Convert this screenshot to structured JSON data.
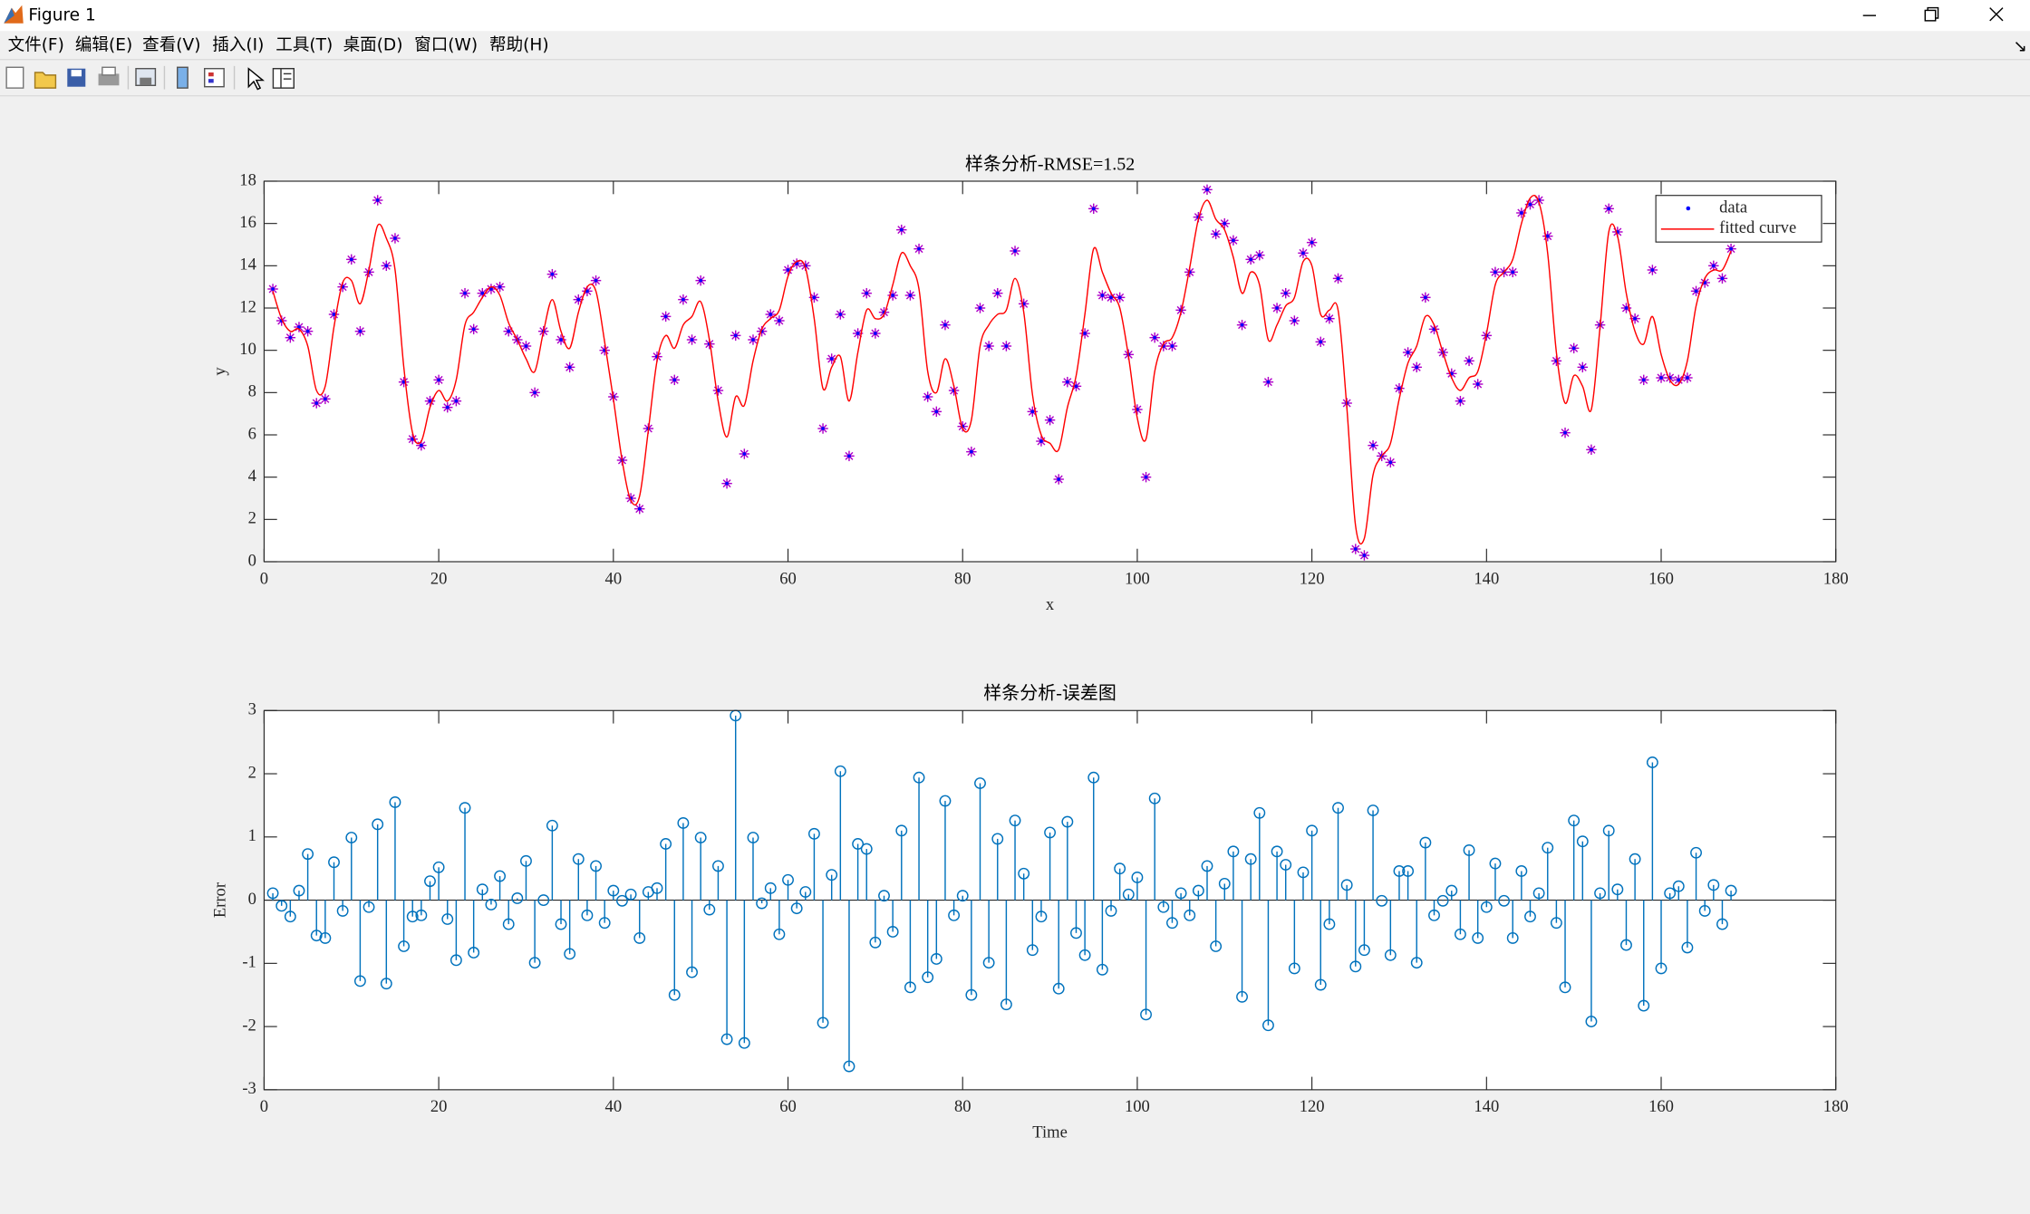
{
  "window": {
    "title": "Figure 1",
    "menu": [
      "文件(F)",
      "编辑(E)",
      "查看(V)",
      "插入(I)",
      "工具(T)",
      "桌面(D)",
      "窗口(W)",
      "帮助(H)"
    ]
  },
  "chart_data": [
    {
      "type": "line",
      "title": "样条分析-RMSE=1.52",
      "xlabel": "x",
      "ylabel": "y",
      "x": [
        1,
        2,
        3,
        4,
        5,
        6,
        7,
        8,
        9,
        10,
        11,
        12,
        13,
        14,
        15,
        16,
        17,
        18,
        19,
        20,
        21,
        22,
        23,
        24,
        25,
        26,
        27,
        28,
        29,
        30,
        31,
        32,
        33,
        34,
        35,
        36,
        37,
        38,
        39,
        40,
        41,
        42,
        43,
        44,
        45,
        46,
        47,
        48,
        49,
        50,
        51,
        52,
        53,
        54,
        55,
        56,
        57,
        58,
        59,
        60,
        61,
        62,
        63,
        64,
        65,
        66,
        67,
        68,
        69,
        70,
        71,
        72,
        73,
        74,
        75,
        76,
        77,
        78,
        79,
        80,
        81,
        82,
        83,
        84,
        85,
        86,
        87,
        88,
        89,
        90,
        91,
        92,
        93,
        94,
        95,
        96,
        97,
        98,
        99,
        100,
        101,
        102,
        103,
        104,
        105,
        106,
        107,
        108,
        109,
        110,
        111,
        112,
        113,
        114,
        115,
        116,
        117,
        118,
        119,
        120,
        121,
        122,
        123,
        124,
        125,
        126,
        127,
        128,
        129,
        130,
        131,
        132,
        133,
        134,
        135,
        136,
        137,
        138,
        139,
        140,
        141,
        142,
        143,
        144,
        145,
        146,
        147,
        148,
        149,
        150,
        151,
        152,
        153,
        154,
        155,
        156,
        157,
        158,
        159,
        160,
        161,
        162,
        163,
        164,
        165,
        166,
        167,
        168
      ],
      "series": [
        {
          "name": "data",
          "style": "markers",
          "color": "#0000ff",
          "marker_color": "#b000c8",
          "values": [
            12.9,
            11.4,
            10.6,
            11.1,
            10.9,
            7.5,
            7.7,
            11.7,
            13.0,
            14.3,
            10.9,
            13.7,
            17.1,
            14.0,
            15.3,
            8.5,
            5.8,
            5.5,
            7.6,
            8.6,
            7.3,
            7.6,
            12.7,
            11.0,
            12.7,
            12.9,
            13.0,
            10.9,
            10.5,
            10.2,
            8.0,
            10.9,
            13.6,
            10.5,
            9.2,
            12.4,
            12.8,
            13.3,
            10.0,
            7.8,
            4.8,
            3.0,
            2.5,
            6.3,
            9.7,
            11.6,
            8.6,
            12.4,
            10.5,
            13.3,
            10.3,
            8.1,
            3.7,
            10.7,
            5.1,
            10.5,
            10.9,
            11.7,
            11.4,
            13.8,
            14.1,
            14.0,
            12.5,
            6.3,
            9.6,
            11.7,
            5.0,
            10.8,
            12.7,
            10.8,
            11.8,
            12.6,
            15.7,
            12.6,
            14.8,
            7.8,
            7.1,
            11.2,
            8.1,
            6.4,
            5.2,
            12.0,
            10.2,
            12.7,
            10.2,
            14.7,
            12.2,
            7.1,
            5.7,
            6.7,
            3.9,
            8.5,
            8.3,
            10.8,
            16.7,
            12.6,
            12.5,
            12.5,
            9.8,
            7.2,
            4.0,
            10.6,
            10.2,
            10.2,
            11.9,
            13.7,
            16.3,
            17.6,
            15.5,
            16.0,
            15.2,
            11.2,
            14.3,
            14.5,
            8.5,
            12.0,
            12.7,
            11.4,
            14.6,
            15.1,
            10.4,
            11.5,
            13.4,
            7.5,
            0.6,
            0.3,
            5.5,
            5.0,
            4.7,
            8.2,
            9.9,
            9.2,
            12.5,
            11.0,
            9.9,
            8.9,
            7.6,
            9.5,
            8.4,
            10.7,
            13.7,
            13.7,
            13.7,
            16.5,
            16.9,
            17.1,
            15.4,
            9.5,
            6.1,
            10.1,
            9.2,
            5.3,
            11.2,
            16.7,
            15.6,
            12.0,
            11.5,
            8.6,
            13.8,
            8.7,
            8.7,
            8.6,
            8.7,
            12.8,
            13.2,
            14.0,
            13.4,
            14.8
          ]
        },
        {
          "name": "fitted curve",
          "style": "line",
          "color": "#ff0000",
          "values": [
            12.8,
            11.5,
            10.9,
            11.0,
            10.2,
            8.1,
            8.3,
            11.1,
            13.2,
            13.3,
            12.2,
            13.8,
            15.9,
            15.3,
            13.8,
            9.2,
            6.1,
            5.7,
            7.3,
            8.1,
            7.6,
            8.6,
            11.2,
            11.8,
            12.5,
            13.0,
            12.6,
            11.3,
            10.5,
            9.6,
            9.0,
            10.9,
            12.4,
            10.9,
            10.1,
            11.8,
            13.0,
            12.8,
            10.4,
            7.7,
            4.8,
            2.9,
            3.1,
            6.2,
            9.5,
            10.7,
            10.1,
            11.2,
            11.6,
            12.3,
            10.5,
            7.6,
            5.9,
            7.8,
            7.4,
            9.5,
            11.0,
            11.5,
            11.9,
            13.5,
            14.2,
            13.9,
            11.5,
            8.2,
            9.2,
            9.7,
            7.6,
            9.9,
            11.9,
            11.5,
            11.7,
            13.1,
            14.6,
            14.0,
            12.9,
            9.0,
            8.0,
            9.6,
            8.3,
            6.3,
            6.7,
            10.2,
            11.2,
            11.7,
            11.9,
            13.4,
            11.8,
            7.9,
            6.0,
            5.6,
            5.3,
            7.3,
            8.8,
            11.7,
            14.8,
            13.7,
            12.7,
            12.0,
            9.7,
            6.8,
            5.8,
            9.0,
            10.3,
            10.6,
            11.8,
            13.9,
            16.2,
            17.1,
            16.2,
            15.7,
            14.4,
            12.7,
            13.7,
            13.1,
            10.5,
            11.2,
            12.1,
            12.5,
            14.2,
            14.0,
            11.7,
            11.9,
            11.9,
            7.3,
            1.7,
            1.1,
            4.1,
            5.0,
            5.6,
            7.7,
            9.4,
            10.2,
            11.6,
            11.2,
            9.9,
            8.7,
            8.1,
            8.7,
            9.0,
            10.8,
            13.1,
            13.7,
            14.3,
            16.0,
            17.2,
            17.0,
            14.6,
            9.9,
            7.5,
            8.8,
            8.3,
            7.2,
            11.1,
            15.6,
            15.4,
            12.7,
            10.9,
            10.3,
            11.6,
            9.8,
            8.6,
            8.4,
            9.5,
            12.1,
            13.4,
            13.8,
            13.8,
            14.7
          ]
        }
      ],
      "xlim": [
        0,
        180
      ],
      "xticks": [
        0,
        20,
        40,
        60,
        80,
        100,
        120,
        140,
        160,
        180
      ],
      "ylim": [
        0,
        18
      ],
      "yticks": [
        0,
        2,
        4,
        6,
        8,
        10,
        12,
        14,
        16,
        18
      ],
      "grid": false,
      "legend": "northeast"
    },
    {
      "type": "stem",
      "title": "样条分析-误差图",
      "xlabel": "Time",
      "ylabel": "Error",
      "x": [
        1,
        2,
        3,
        4,
        5,
        6,
        7,
        8,
        9,
        10,
        11,
        12,
        13,
        14,
        15,
        16,
        17,
        18,
        19,
        20,
        21,
        22,
        23,
        24,
        25,
        26,
        27,
        28,
        29,
        30,
        31,
        32,
        33,
        34,
        35,
        36,
        37,
        38,
        39,
        40,
        41,
        42,
        43,
        44,
        45,
        46,
        47,
        48,
        49,
        50,
        51,
        52,
        53,
        54,
        55,
        56,
        57,
        58,
        59,
        60,
        61,
        62,
        63,
        64,
        65,
        66,
        67,
        68,
        69,
        70,
        71,
        72,
        73,
        74,
        75,
        76,
        77,
        78,
        79,
        80,
        81,
        82,
        83,
        84,
        85,
        86,
        87,
        88,
        89,
        90,
        91,
        92,
        93,
        94,
        95,
        96,
        97,
        98,
        99,
        100,
        101,
        102,
        103,
        104,
        105,
        106,
        107,
        108,
        109,
        110,
        111,
        112,
        113,
        114,
        115,
        116,
        117,
        118,
        119,
        120,
        121,
        122,
        123,
        124,
        125,
        126,
        127,
        128,
        129,
        130,
        131,
        132,
        133,
        134,
        135,
        136,
        137,
        138,
        139,
        140,
        141,
        142,
        143,
        144,
        145,
        146,
        147,
        148,
        149,
        150,
        151,
        152,
        153,
        154,
        155,
        156,
        157,
        158,
        159,
        160,
        161,
        162,
        163,
        164,
        165,
        166,
        167,
        168
      ],
      "color": "#0072bd",
      "values": [
        0.11,
        -0.09,
        -0.26,
        0.15,
        0.73,
        -0.56,
        -0.6,
        0.6,
        -0.17,
        0.99,
        -1.28,
        -0.11,
        1.2,
        -1.32,
        1.55,
        -0.73,
        -0.26,
        -0.24,
        0.3,
        0.52,
        -0.3,
        -0.95,
        1.46,
        -0.83,
        0.17,
        -0.07,
        0.38,
        -0.38,
        0.03,
        0.62,
        -0.99,
        0.0,
        1.18,
        -0.38,
        -0.85,
        0.65,
        -0.24,
        0.54,
        -0.36,
        0.15,
        -0.01,
        0.09,
        -0.6,
        0.13,
        0.19,
        0.89,
        -1.5,
        1.22,
        -1.14,
        0.99,
        -0.15,
        0.54,
        -2.2,
        2.92,
        -2.26,
        0.99,
        -0.05,
        0.19,
        -0.54,
        0.32,
        -0.13,
        0.13,
        1.05,
        -1.94,
        0.4,
        2.04,
        -2.63,
        0.89,
        0.81,
        -0.67,
        0.07,
        -0.5,
        1.1,
        -1.38,
        1.94,
        -1.22,
        -0.93,
        1.57,
        -0.24,
        0.07,
        -1.5,
        1.85,
        -0.99,
        0.97,
        -1.65,
        1.26,
        0.42,
        -0.79,
        -0.26,
        1.07,
        -1.4,
        1.24,
        -0.52,
        -0.87,
        1.94,
        -1.1,
        -0.17,
        0.5,
        0.09,
        0.36,
        -1.81,
        1.61,
        -0.11,
        -0.36,
        0.11,
        -0.24,
        0.15,
        0.54,
        -0.73,
        0.26,
        0.77,
        -1.53,
        0.65,
        1.38,
        -1.98,
        0.77,
        0.56,
        -1.08,
        0.44,
        1.1,
        -1.34,
        -0.38,
        1.46,
        0.24,
        -1.05,
        -0.79,
        1.42,
        -0.01,
        -0.87,
        0.46,
        0.46,
        -0.99,
        0.91,
        -0.24,
        -0.01,
        0.15,
        -0.54,
        0.79,
        -0.6,
        -0.11,
        0.58,
        -0.01,
        -0.6,
        0.46,
        -0.26,
        0.11,
        0.83,
        -0.36,
        -1.38,
        1.26,
        0.93,
        -1.92,
        0.11,
        1.1,
        0.17,
        -0.71,
        0.65,
        -1.67,
        2.18,
        -1.08,
        0.11,
        0.22,
        -0.75,
        0.75,
        -0.17,
        0.24,
        -0.38,
        0.15
      ],
      "xlim": [
        0,
        180
      ],
      "xticks": [
        0,
        20,
        40,
        60,
        80,
        100,
        120,
        140,
        160,
        180
      ],
      "ylim": [
        -3,
        3
      ],
      "yticks": [
        -3,
        -2,
        -1,
        0,
        1,
        2,
        3
      ],
      "grid": false
    }
  ]
}
